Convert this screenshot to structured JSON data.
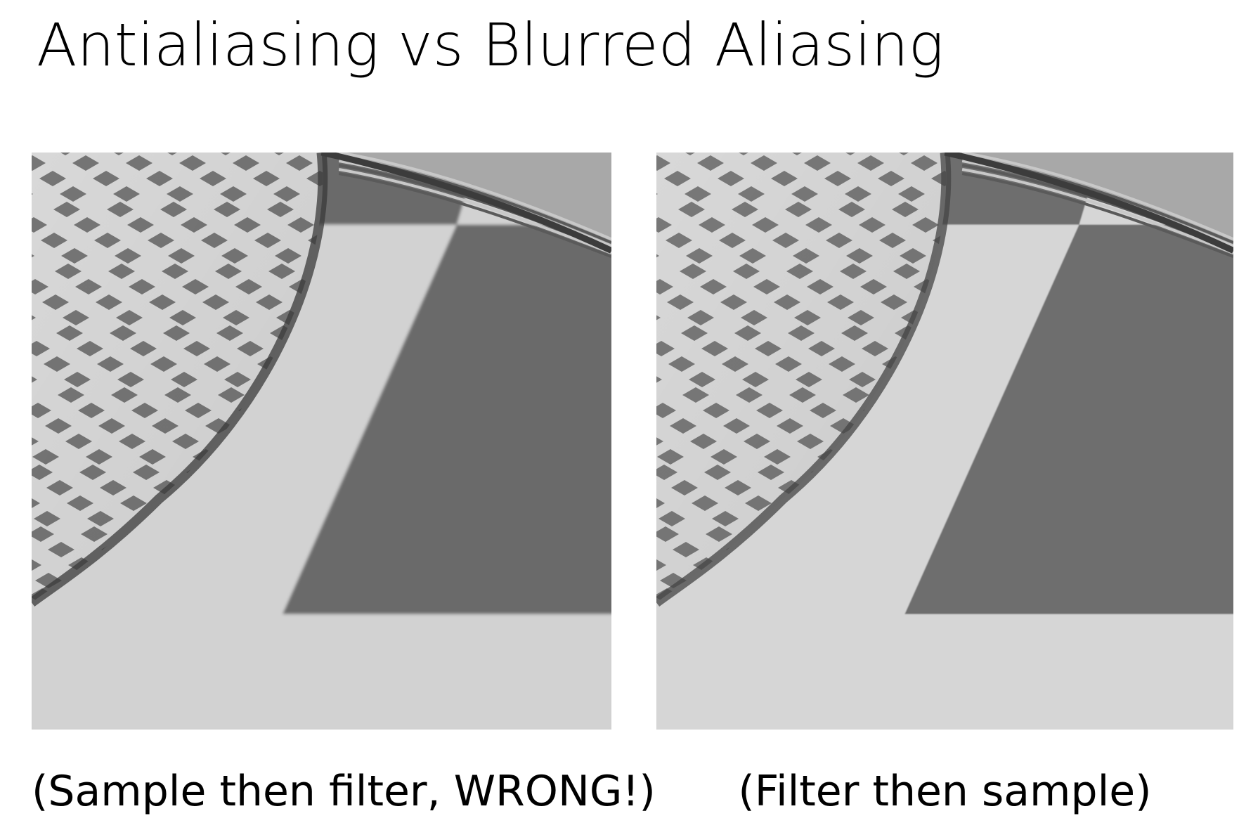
{
  "slide": {
    "title": "Antialiasing vs Blurred Aliasing"
  },
  "panels": [
    {
      "caption": "(Sample then filter, WRONG!)",
      "image": "checkerboard-render-blurred-aliasing",
      "colors": {
        "light": "#d2d2d2",
        "dark": "#6a6a6a"
      }
    },
    {
      "caption": "(Filter then sample)",
      "image": "checkerboard-render-antialiased",
      "colors": {
        "light": "#d6d6d6",
        "dark": "#6e6e6e"
      }
    }
  ]
}
